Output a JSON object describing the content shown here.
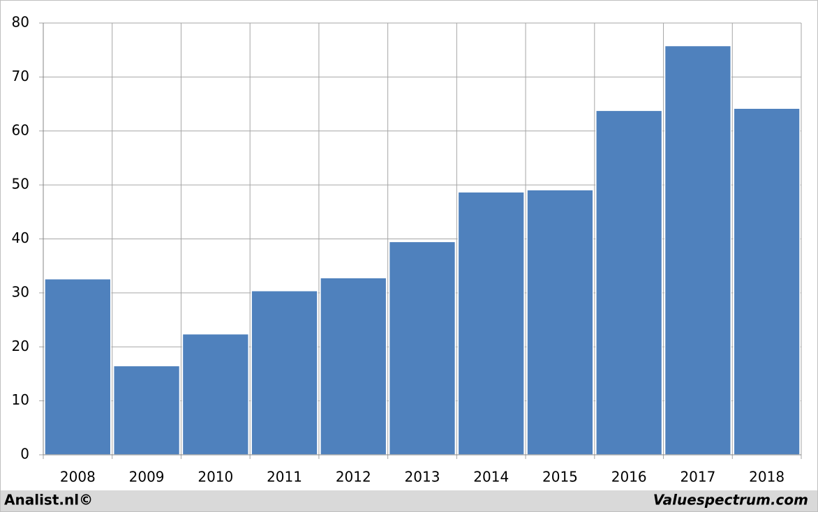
{
  "chart_data": {
    "type": "bar",
    "categories": [
      "2008",
      "2009",
      "2010",
      "2011",
      "2012",
      "2013",
      "2014",
      "2015",
      "2016",
      "2017",
      "2018"
    ],
    "values": [
      32.6,
      16.5,
      22.4,
      30.4,
      32.8,
      39.5,
      48.7,
      49.1,
      63.8,
      75.8,
      64.2
    ],
    "color": "#4f81bd",
    "ylim": [
      0,
      80
    ],
    "yticks": [
      0,
      10,
      20,
      30,
      40,
      50,
      60,
      70,
      80
    ],
    "grid": true,
    "footer_left": "Analist.nl©",
    "footer_right": "Valuespectrum.com"
  }
}
